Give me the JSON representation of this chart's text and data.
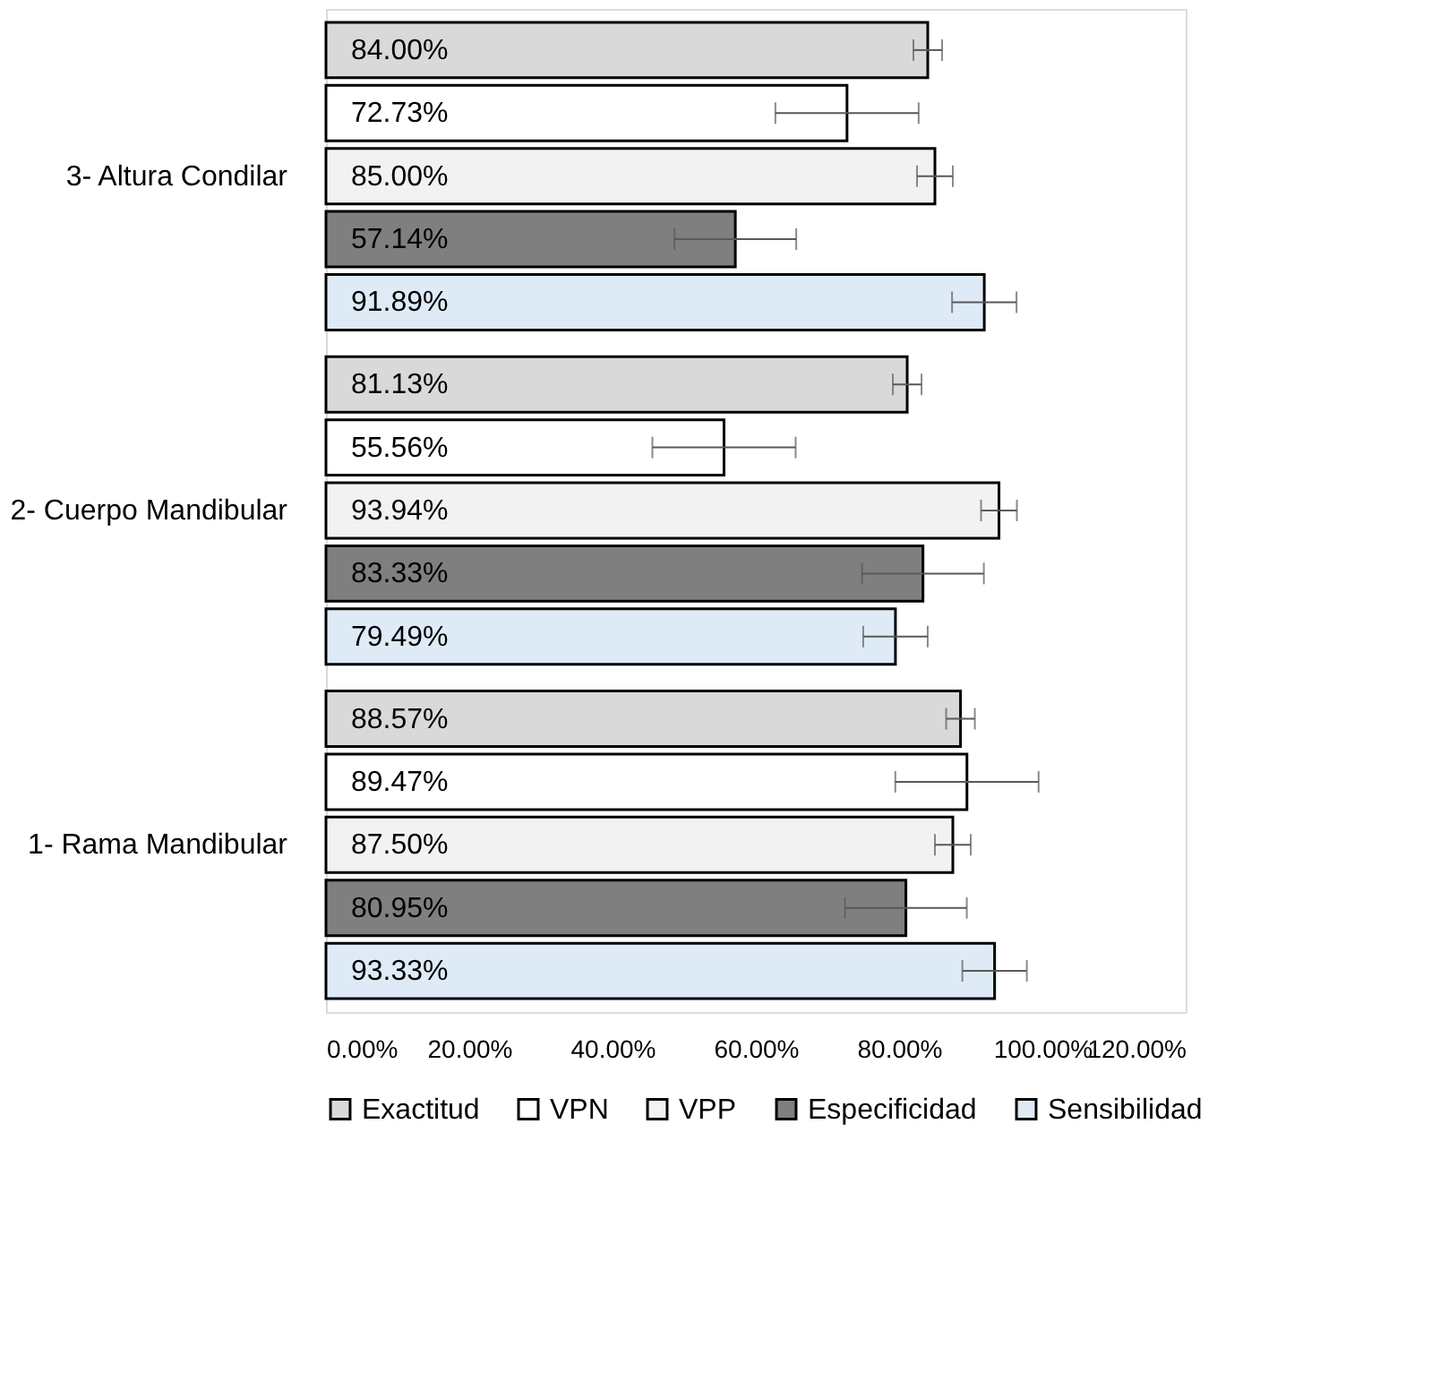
{
  "chart_data": {
    "type": "bar",
    "orientation": "horizontal",
    "categories": [
      "3- Altura Condilar",
      "2- Cuerpo Mandibular",
      "1- Rama Mandibular"
    ],
    "series": [
      {
        "name": "Exactitud",
        "color": "#d9d9d9",
        "values": [
          84.0,
          81.13,
          88.57
        ],
        "errors": [
          2,
          2,
          2
        ],
        "value_labels": [
          "84.00%",
          "81.13%",
          "88.57%"
        ]
      },
      {
        "name": "VPN",
        "color": "#ffffff",
        "values": [
          72.73,
          55.56,
          89.47
        ],
        "errors": [
          10,
          10,
          10
        ],
        "value_labels": [
          "72.73%",
          "55.56%",
          "89.47%"
        ]
      },
      {
        "name": "VPP",
        "color": "#f2f2f2",
        "values": [
          85.0,
          93.94,
          87.5
        ],
        "errors": [
          2.5,
          2.5,
          2.5
        ],
        "value_labels": [
          "85.00%",
          "93.94%",
          "87.50%"
        ]
      },
      {
        "name": "Especificidad",
        "color": "#7f7f7f",
        "values": [
          57.14,
          83.33,
          80.95
        ],
        "errors": [
          8.5,
          8.5,
          8.5
        ],
        "value_labels": [
          "57.14%",
          "83.33%",
          "80.95%"
        ]
      },
      {
        "name": "Sensibilidad",
        "color": "#deebf7",
        "values": [
          91.89,
          79.49,
          93.33
        ],
        "errors": [
          4.5,
          4.5,
          4.5
        ],
        "value_labels": [
          "91.89%",
          "79.49%",
          "93.33%"
        ]
      }
    ],
    "xlim": [
      0,
      120
    ],
    "xticks": [
      {
        "value": 0,
        "label": "0.00%"
      },
      {
        "value": 20,
        "label": "20.00%"
      },
      {
        "value": 40,
        "label": "40.00%"
      },
      {
        "value": 60,
        "label": "60.00%"
      },
      {
        "value": 80,
        "label": "80.00%"
      },
      {
        "value": 100,
        "label": "100.00%"
      },
      {
        "value": 120,
        "label": "120.00%"
      }
    ],
    "grid": false,
    "legend": "bottom"
  }
}
